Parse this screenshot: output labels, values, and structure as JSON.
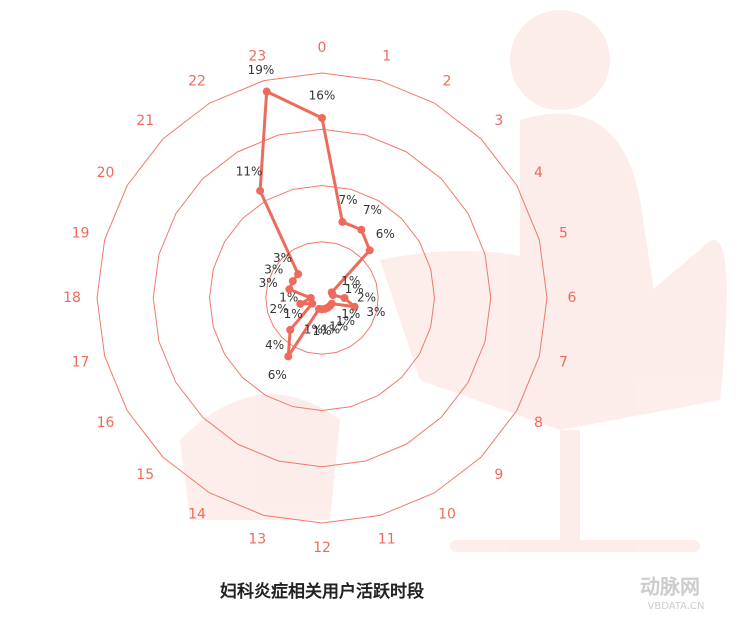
{
  "chart_data": {
    "type": "radar",
    "title": "妇科炎症相关用户活跃时段",
    "categories": [
      "0",
      "1",
      "2",
      "3",
      "4",
      "5",
      "6",
      "7",
      "8",
      "9",
      "10",
      "11",
      "12",
      "13",
      "14",
      "15",
      "16",
      "17",
      "18",
      "19",
      "20",
      "21",
      "22",
      "23"
    ],
    "values": [
      16,
      7,
      7,
      6,
      1,
      1,
      2,
      3,
      1,
      1,
      1,
      1,
      1,
      1,
      6,
      4,
      1,
      2,
      1,
      3,
      3,
      3,
      11,
      19
    ],
    "value_labels": [
      "16%",
      "7%",
      "7%",
      "6%",
      "1%",
      "1%",
      "2%",
      "3%",
      "1%",
      "1%",
      "1%",
      "1%",
      "1%",
      "1%",
      "6%",
      "4%",
      "1%",
      "2%",
      "1%",
      "3%",
      "3%",
      "3%",
      "11%",
      "19%"
    ],
    "color": "#ee6b5c",
    "grid_color": "#f07a6a",
    "rlim": [
      0,
      20
    ],
    "rticks": [
      5,
      10,
      15,
      20
    ],
    "grid": true,
    "watermark": {
      "brand": "动脉网",
      "site": "VBDATA.CN"
    }
  }
}
